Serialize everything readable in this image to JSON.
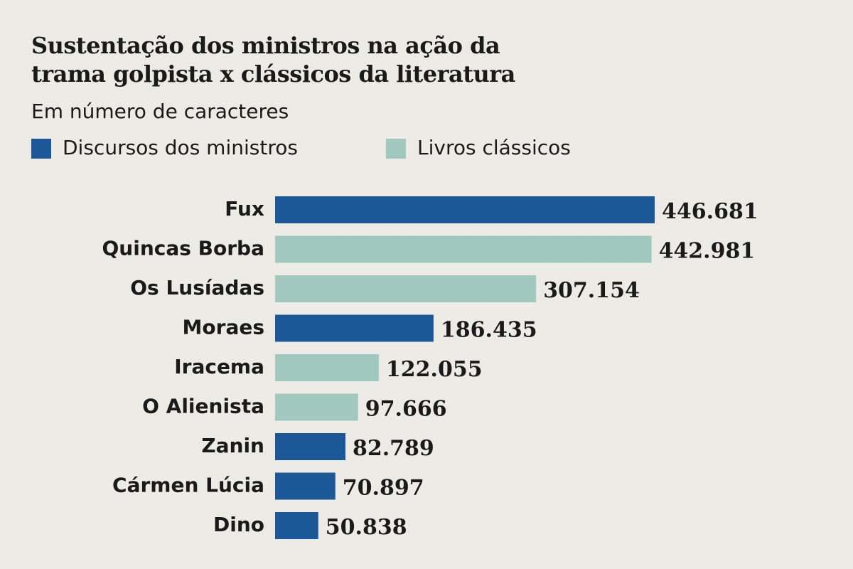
{
  "chart_data": {
    "type": "bar",
    "orientation": "horizontal",
    "title": "Sustentação dos ministros na ação da trama golpista x clássicos da literatura",
    "subtitle": "Em número de caracteres",
    "categories": [
      "Fux",
      "Quincas Borba",
      "Os Lusíadas",
      "Moraes",
      "Iracema",
      "O Alienista",
      "Zanin",
      "Cármen Lúcia",
      "Dino"
    ],
    "series": [
      {
        "name": "Discursos dos ministros",
        "color": "#1c5797",
        "values": [
          446681,
          null,
          null,
          186435,
          null,
          null,
          82789,
          70897,
          50838
        ],
        "value_labels": [
          "446.681",
          null,
          null,
          "186.435",
          null,
          null,
          "82.789",
          "70.897",
          "50.838"
        ]
      },
      {
        "name": "Livros clássicos",
        "color": "#a0c8be",
        "values": [
          null,
          442981,
          307154,
          null,
          122055,
          97666,
          null,
          null,
          null
        ],
        "value_labels": [
          null,
          "442.981",
          "307.154",
          null,
          "122.055",
          "97.666",
          null,
          null,
          null
        ]
      }
    ]
  }
}
